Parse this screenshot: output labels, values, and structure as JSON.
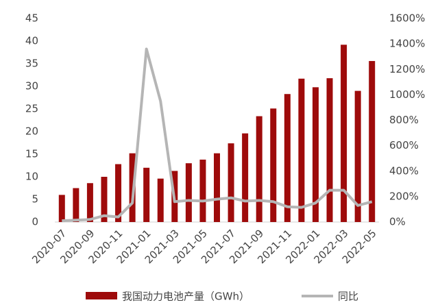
{
  "chart_data": {
    "type": "bar-line",
    "categories": [
      "2020-07",
      null,
      "2020-09",
      null,
      "2020-11",
      null,
      "2021-01",
      null,
      "2021-03",
      null,
      "2021-05",
      null,
      "2021-07",
      null,
      "2021-09",
      null,
      "2021-11",
      null,
      "2022-01",
      null,
      "2022-03",
      null,
      "2022-05"
    ],
    "series": [
      {
        "name": "我国动力电池产量（GWh）",
        "color": "#9e0b0b",
        "type": "bar",
        "values": [
          6.0,
          7.5,
          8.6,
          10.0,
          12.8,
          15.2,
          12.0,
          9.6,
          11.3,
          13.0,
          13.8,
          15.2,
          17.4,
          19.6,
          23.4,
          25.1,
          28.3,
          31.7,
          29.8,
          31.8,
          39.2,
          29.0,
          35.6
        ]
      },
      {
        "name": "同比",
        "color": "#b5b5b5",
        "type": "line",
        "axis": "y2",
        "values": [
          10,
          15,
          20,
          50,
          40,
          150,
          1360,
          950,
          160,
          170,
          165,
          180,
          190,
          165,
          170,
          160,
          120,
          115,
          150,
          250,
          250,
          130,
          160
        ]
      }
    ],
    "ylim": [
      0,
      45
    ],
    "yticks": [
      0,
      5,
      10,
      15,
      20,
      25,
      30,
      35,
      40,
      45
    ],
    "y2lim": [
      0,
      1600
    ],
    "y2ticks": [
      {
        "value": 0,
        "label": "0%"
      },
      {
        "value": 200,
        "label": "200%"
      },
      {
        "value": 400,
        "label": "400%"
      },
      {
        "value": 600,
        "label": "600%"
      },
      {
        "value": 800,
        "label": "800%"
      },
      {
        "value": 1000,
        "label": "1000%"
      },
      {
        "value": 1200,
        "label": "1200%"
      },
      {
        "value": 1400,
        "label": "1400%"
      },
      {
        "value": 1600,
        "label": "1600%"
      }
    ],
    "grid": false,
    "legend": "bottom"
  }
}
